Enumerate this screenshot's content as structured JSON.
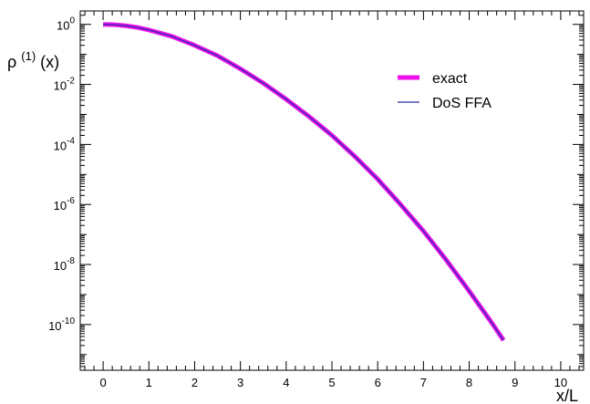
{
  "chart_data": {
    "type": "line",
    "xlabel": "x/L",
    "ylabel": "ρ(1)(x)",
    "ylabel_parts": {
      "base": "ρ",
      "sup": "(1)",
      "suffix": "(x)"
    },
    "xlim": [
      -0.5,
      10.5
    ],
    "ylim": [
      3e-12,
      2.8
    ],
    "yscale": "log",
    "x_ticks": [
      0,
      1,
      2,
      3,
      4,
      5,
      6,
      7,
      8,
      9,
      10
    ],
    "y_ticks": [
      {
        "exp": 0,
        "label": "10",
        "sup": "0"
      },
      {
        "exp": -2,
        "label": "10",
        "sup": "-2"
      },
      {
        "exp": -4,
        "label": "10",
        "sup": "-4"
      },
      {
        "exp": -6,
        "label": "10",
        "sup": "-6"
      },
      {
        "exp": -8,
        "label": "10",
        "sup": "-8"
      },
      {
        "exp": -10,
        "label": "10",
        "sup": "-10"
      }
    ],
    "legend_position": "top-right",
    "grid": false,
    "series": [
      {
        "name": "exact",
        "color": "#ee11ee",
        "style": "thick",
        "x": [
          0,
          0.25,
          0.5,
          0.75,
          1.0,
          1.5,
          2.0,
          2.5,
          3.0,
          3.5,
          4.0,
          4.5,
          5.0,
          5.5,
          6.0,
          6.5,
          7.0,
          7.5,
          8.0,
          8.5,
          8.75
        ],
        "y": [
          1.0,
          0.97,
          0.9,
          0.79,
          0.65,
          0.4,
          0.2,
          0.09,
          0.033,
          0.011,
          0.0032,
          0.00085,
          0.0002,
          4e-05,
          7e-06,
          1e-06,
          1.3e-07,
          1.4e-08,
          1.3e-09,
          1.1e-10,
          3e-11
        ]
      },
      {
        "name": "DoS FFA",
        "color": "#2a2aa6",
        "style": "thin",
        "x": [
          0,
          0.25,
          0.5,
          0.75,
          1.0,
          1.5,
          2.0,
          2.5,
          3.0,
          3.5,
          4.0,
          4.5,
          5.0,
          5.5,
          6.0,
          6.5,
          7.0,
          7.5,
          8.0,
          8.5,
          8.75
        ],
        "y": [
          1.0,
          0.97,
          0.9,
          0.79,
          0.65,
          0.4,
          0.2,
          0.09,
          0.033,
          0.011,
          0.0032,
          0.00085,
          0.0002,
          4e-05,
          7e-06,
          1e-06,
          1.3e-07,
          1.4e-08,
          1.3e-09,
          1.1e-10,
          3e-11
        ]
      }
    ]
  }
}
